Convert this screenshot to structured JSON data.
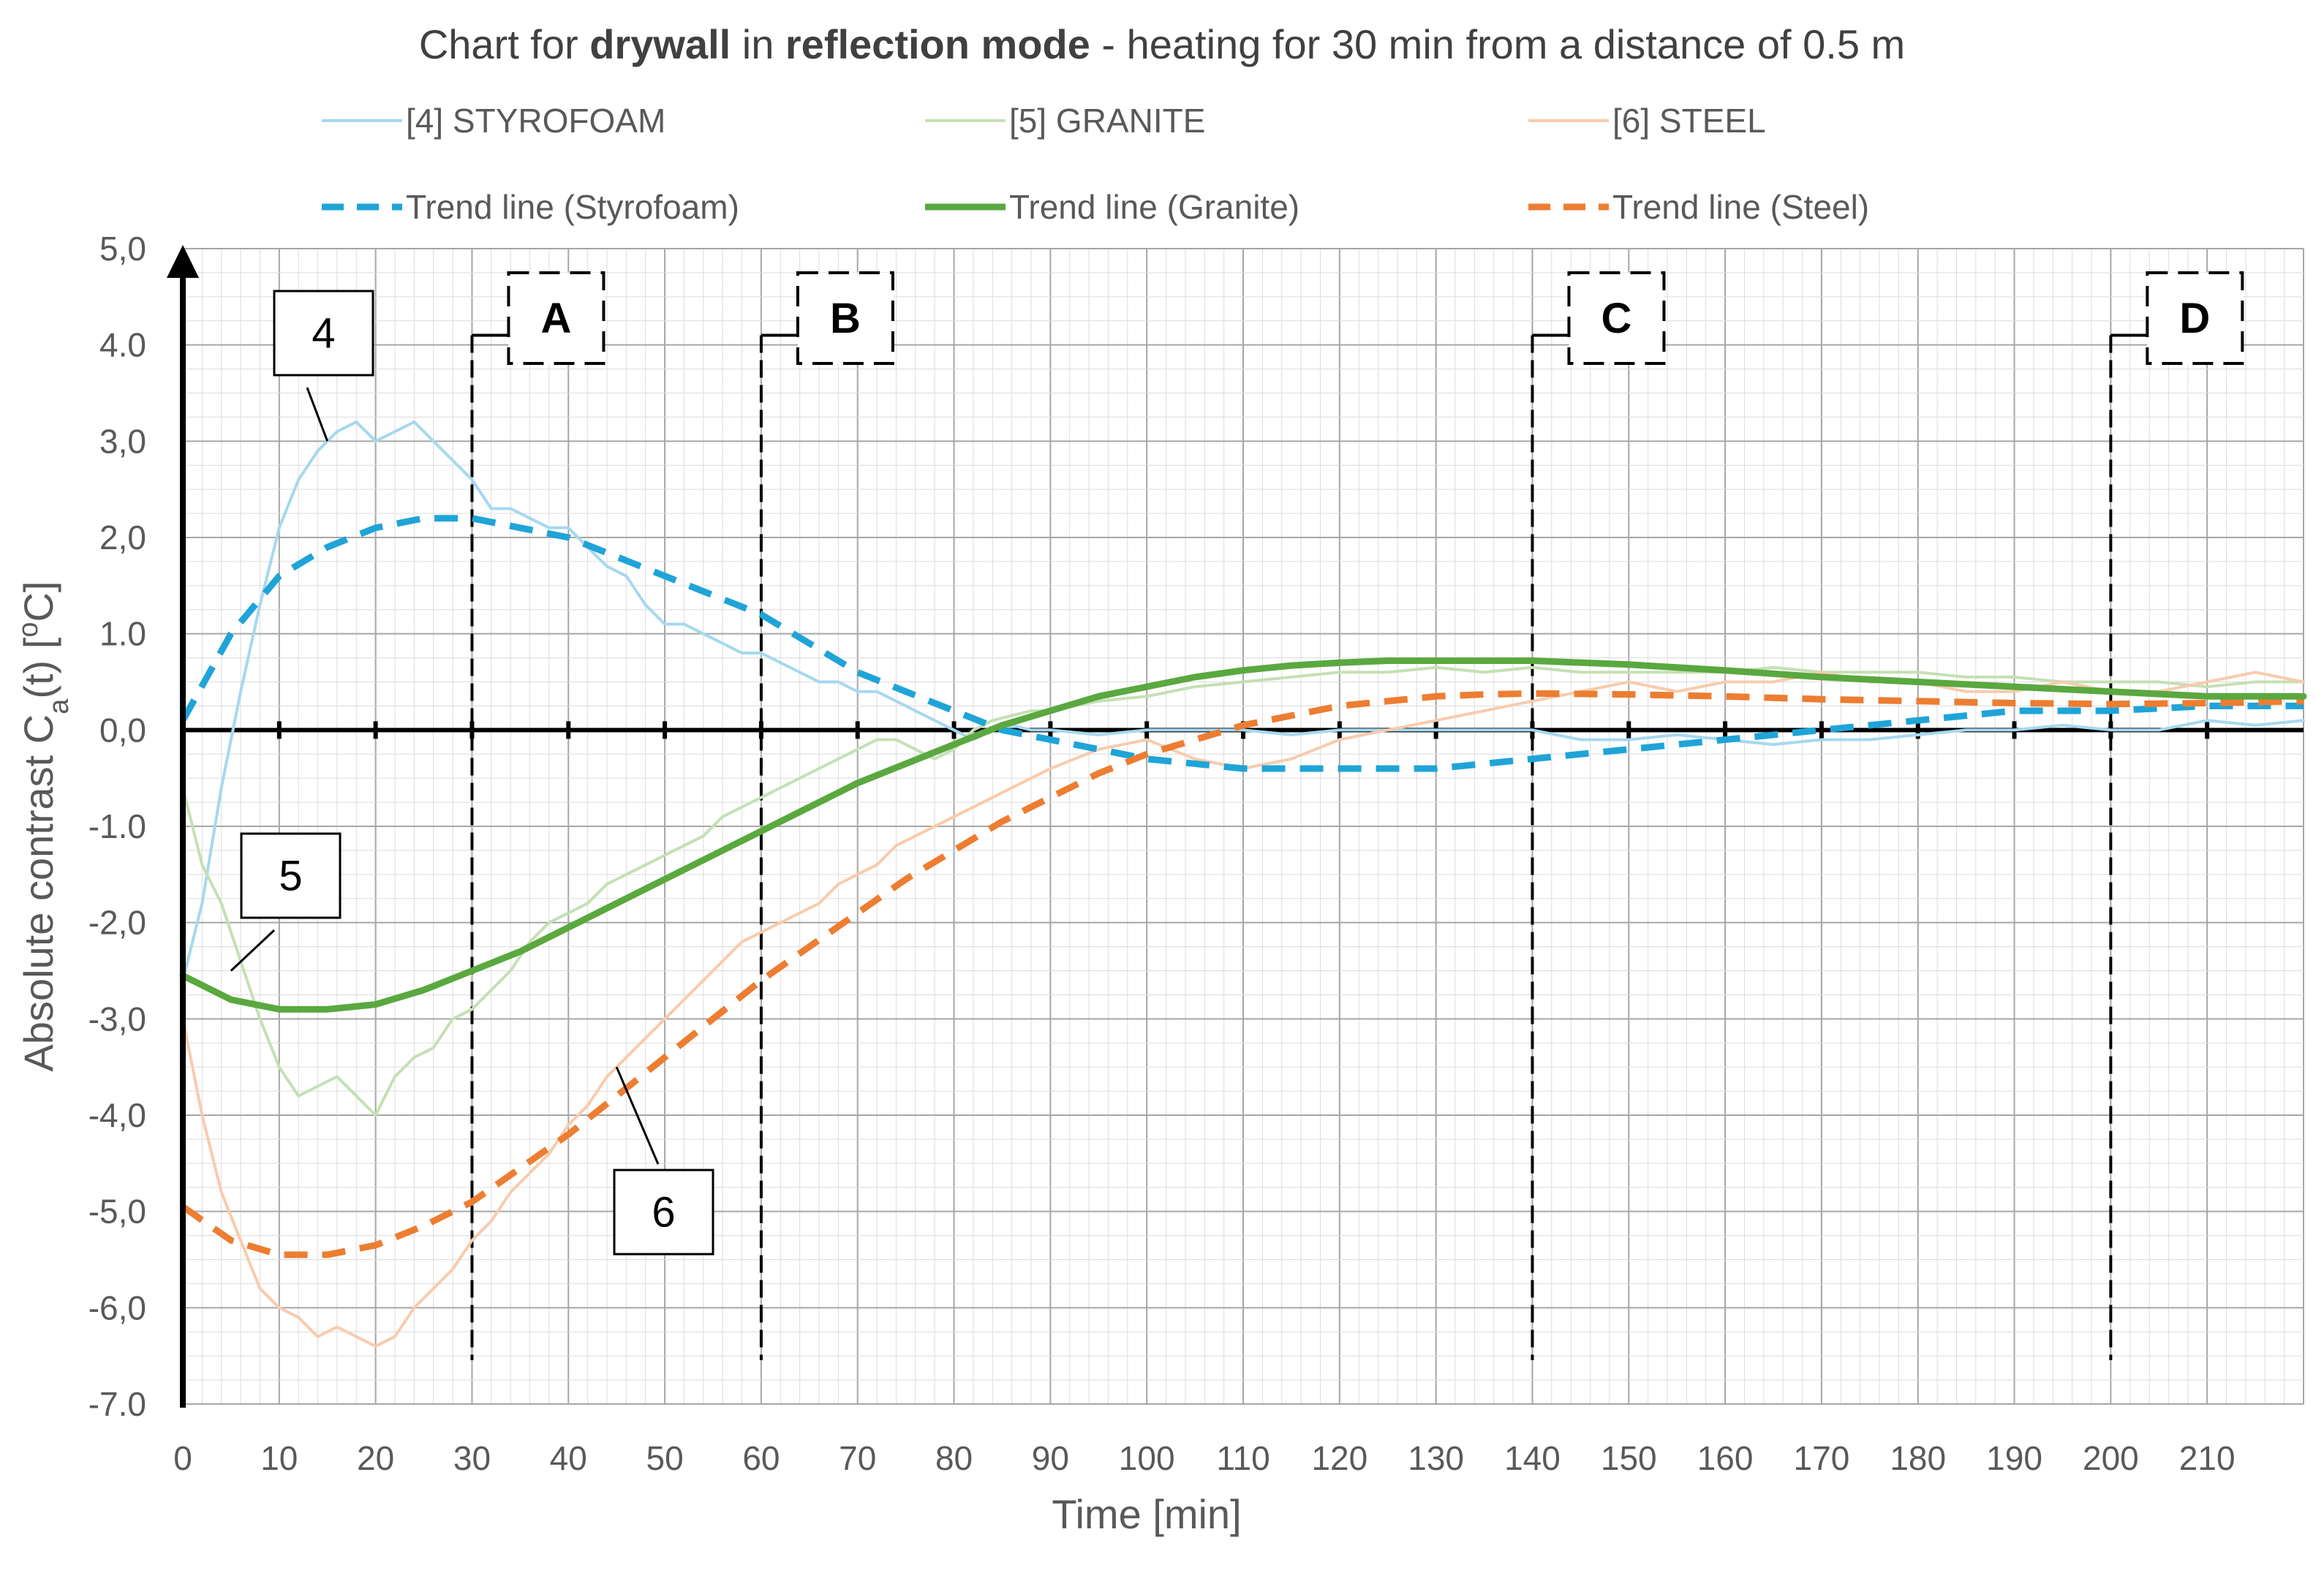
{
  "chart_data": {
    "type": "line",
    "title": {
      "part1": "Chart for ",
      "part2": "drywall",
      "part3": " in ",
      "part4": "reflection mode",
      "part5": " - heating for 30 min from a distance of 0.5 m"
    },
    "xlabel": "Time [min]",
    "ylabel": {
      "main": "Absolute contrast C",
      "sub": "a",
      "tail": "(t)   [",
      "sup": "o",
      "unit": "C]"
    },
    "xlim": [
      0,
      220
    ],
    "ylim": [
      -7,
      5
    ],
    "x_ticks": [
      0,
      10,
      20,
      30,
      40,
      50,
      60,
      70,
      80,
      90,
      100,
      110,
      120,
      130,
      140,
      150,
      160,
      170,
      180,
      190,
      200,
      210
    ],
    "y_tick_labels": [
      "5,0",
      "4.0",
      "3,0",
      "2,0",
      "1.0",
      "0,0",
      "-1.0",
      "-2,0",
      "-3,0",
      "-4,0",
      "-5,0",
      "-6,0",
      "-7.0"
    ],
    "grid": true,
    "legend_position": "top",
    "series": [
      {
        "name": "[4] STYROFOAM",
        "style": "thin-solid",
        "color": "#a6d8ef",
        "x": [
          0,
          2,
          4,
          6,
          8,
          10,
          12,
          14,
          16,
          18,
          20,
          22,
          24,
          26,
          28,
          30,
          32,
          34,
          36,
          38,
          40,
          42,
          44,
          46,
          48,
          50,
          52,
          54,
          56,
          58,
          60,
          62,
          64,
          66,
          68,
          70,
          72,
          74,
          76,
          78,
          80,
          82,
          84,
          86,
          88,
          90,
          95,
          100,
          105,
          110,
          115,
          120,
          125,
          130,
          135,
          140,
          145,
          150,
          155,
          160,
          165,
          170,
          175,
          180,
          185,
          190,
          195,
          200,
          205,
          210,
          215,
          220
        ],
        "y": [
          -2.6,
          -1.8,
          -0.6,
          0.4,
          1.3,
          2.1,
          2.6,
          2.9,
          3.1,
          3.2,
          3.0,
          3.1,
          3.2,
          3.0,
          2.8,
          2.6,
          2.3,
          2.3,
          2.2,
          2.1,
          2.1,
          1.9,
          1.7,
          1.6,
          1.3,
          1.1,
          1.1,
          1.0,
          0.9,
          0.8,
          0.8,
          0.7,
          0.6,
          0.5,
          0.5,
          0.4,
          0.4,
          0.3,
          0.2,
          0.1,
          0.0,
          -0.1,
          0.0,
          0.05,
          0.0,
          0.0,
          -0.05,
          0.0,
          0.0,
          0.0,
          -0.05,
          0.0,
          0.0,
          0.0,
          0.0,
          0.0,
          -0.1,
          -0.1,
          -0.05,
          -0.1,
          -0.15,
          -0.1,
          -0.1,
          -0.05,
          0.0,
          0.0,
          0.05,
          0.0,
          0.0,
          0.1,
          0.05,
          0.1
        ]
      },
      {
        "name": "[5]  GRANITE",
        "style": "thin-solid",
        "color": "#c5e0b4",
        "x": [
          0,
          2,
          4,
          6,
          8,
          10,
          12,
          14,
          16,
          18,
          20,
          22,
          24,
          26,
          28,
          30,
          32,
          34,
          36,
          38,
          40,
          42,
          44,
          46,
          48,
          50,
          52,
          54,
          56,
          58,
          60,
          62,
          64,
          66,
          68,
          70,
          72,
          74,
          76,
          78,
          80,
          82,
          84,
          86,
          88,
          90,
          95,
          100,
          105,
          110,
          115,
          120,
          125,
          130,
          135,
          140,
          145,
          150,
          155,
          160,
          165,
          170,
          175,
          180,
          185,
          190,
          195,
          200,
          205,
          210,
          215,
          220
        ],
        "y": [
          -0.6,
          -1.4,
          -1.8,
          -2.4,
          -3.0,
          -3.5,
          -3.8,
          -3.7,
          -3.6,
          -3.8,
          -4.0,
          -3.6,
          -3.4,
          -3.3,
          -3.0,
          -2.9,
          -2.7,
          -2.5,
          -2.2,
          -2.0,
          -1.9,
          -1.8,
          -1.6,
          -1.5,
          -1.4,
          -1.3,
          -1.2,
          -1.1,
          -0.9,
          -0.8,
          -0.7,
          -0.6,
          -0.5,
          -0.4,
          -0.3,
          -0.2,
          -0.1,
          -0.1,
          -0.2,
          -0.3,
          -0.2,
          0.0,
          0.1,
          0.15,
          0.2,
          0.2,
          0.3,
          0.35,
          0.45,
          0.5,
          0.55,
          0.6,
          0.6,
          0.65,
          0.6,
          0.65,
          0.6,
          0.6,
          0.6,
          0.6,
          0.65,
          0.6,
          0.6,
          0.6,
          0.55,
          0.55,
          0.5,
          0.5,
          0.5,
          0.45,
          0.5,
          0.5
        ]
      },
      {
        "name": "[6] STEEL",
        "style": "thin-solid",
        "color": "#f8cbad",
        "x": [
          0,
          2,
          4,
          6,
          8,
          10,
          12,
          14,
          16,
          18,
          20,
          22,
          24,
          26,
          28,
          30,
          32,
          34,
          36,
          38,
          40,
          42,
          44,
          46,
          48,
          50,
          52,
          54,
          56,
          58,
          60,
          62,
          64,
          66,
          68,
          70,
          72,
          74,
          76,
          78,
          80,
          82,
          84,
          86,
          88,
          90,
          95,
          100,
          105,
          110,
          115,
          120,
          125,
          130,
          135,
          140,
          145,
          150,
          155,
          160,
          165,
          170,
          175,
          180,
          185,
          190,
          195,
          200,
          205,
          210,
          215,
          220
        ],
        "y": [
          -3.0,
          -4.0,
          -4.8,
          -5.3,
          -5.8,
          -6.0,
          -6.1,
          -6.3,
          -6.2,
          -6.3,
          -6.4,
          -6.3,
          -6.0,
          -5.8,
          -5.6,
          -5.3,
          -5.1,
          -4.8,
          -4.6,
          -4.4,
          -4.1,
          -3.9,
          -3.6,
          -3.4,
          -3.2,
          -3.0,
          -2.8,
          -2.6,
          -2.4,
          -2.2,
          -2.1,
          -2.0,
          -1.9,
          -1.8,
          -1.6,
          -1.5,
          -1.4,
          -1.2,
          -1.1,
          -1.0,
          -0.9,
          -0.8,
          -0.7,
          -0.6,
          -0.5,
          -0.4,
          -0.2,
          -0.1,
          -0.3,
          -0.4,
          -0.3,
          -0.1,
          0.0,
          0.1,
          0.2,
          0.3,
          0.4,
          0.5,
          0.4,
          0.5,
          0.5,
          0.6,
          0.5,
          0.5,
          0.4,
          0.4,
          0.5,
          0.4,
          0.4,
          0.5,
          0.6,
          0.5
        ]
      },
      {
        "name": "Trend line (Styrofoam)",
        "style": "dashed",
        "color": "#1fa4d8",
        "x": [
          0,
          5,
          10,
          15,
          20,
          25,
          30,
          35,
          40,
          45,
          50,
          55,
          60,
          65,
          70,
          75,
          80,
          85,
          90,
          95,
          100,
          105,
          110,
          120,
          130,
          140,
          150,
          160,
          170,
          180,
          190,
          200,
          210,
          220
        ],
        "y": [
          0.1,
          1.0,
          1.6,
          1.9,
          2.1,
          2.2,
          2.2,
          2.1,
          2.0,
          1.8,
          1.6,
          1.4,
          1.2,
          0.9,
          0.6,
          0.4,
          0.2,
          0.0,
          -0.1,
          -0.2,
          -0.3,
          -0.35,
          -0.4,
          -0.4,
          -0.4,
          -0.3,
          -0.2,
          -0.1,
          0.0,
          0.1,
          0.2,
          0.2,
          0.25,
          0.25
        ]
      },
      {
        "name": "Trend line (Granite)",
        "style": "solid-thick",
        "color": "#5aa83f",
        "x": [
          0,
          5,
          10,
          15,
          20,
          25,
          30,
          35,
          40,
          45,
          50,
          55,
          60,
          65,
          70,
          75,
          80,
          85,
          90,
          95,
          100,
          105,
          110,
          115,
          120,
          125,
          130,
          135,
          140,
          150,
          160,
          170,
          180,
          190,
          200,
          210,
          220
        ],
        "y": [
          -2.55,
          -2.8,
          -2.9,
          -2.9,
          -2.85,
          -2.7,
          -2.5,
          -2.3,
          -2.05,
          -1.8,
          -1.55,
          -1.3,
          -1.05,
          -0.8,
          -0.55,
          -0.35,
          -0.15,
          0.05,
          0.2,
          0.35,
          0.45,
          0.55,
          0.62,
          0.67,
          0.7,
          0.72,
          0.72,
          0.72,
          0.72,
          0.68,
          0.62,
          0.55,
          0.5,
          0.45,
          0.4,
          0.35,
          0.35
        ]
      },
      {
        "name": "Trend line (Steel)",
        "style": "dashed",
        "color": "#ed7d31",
        "x": [
          0,
          5,
          10,
          15,
          20,
          25,
          30,
          35,
          40,
          45,
          50,
          55,
          60,
          65,
          70,
          75,
          80,
          85,
          90,
          95,
          100,
          105,
          110,
          115,
          120,
          125,
          130,
          135,
          140,
          150,
          160,
          170,
          180,
          190,
          200,
          210,
          220
        ],
        "y": [
          -4.95,
          -5.3,
          -5.45,
          -5.45,
          -5.35,
          -5.15,
          -4.9,
          -4.55,
          -4.2,
          -3.8,
          -3.4,
          -3.0,
          -2.6,
          -2.25,
          -1.9,
          -1.55,
          -1.25,
          -0.95,
          -0.7,
          -0.45,
          -0.25,
          -0.1,
          0.05,
          0.15,
          0.25,
          0.3,
          0.35,
          0.37,
          0.38,
          0.37,
          0.35,
          0.32,
          0.3,
          0.28,
          0.27,
          0.28,
          0.3
        ]
      }
    ],
    "phase_markers": [
      {
        "label": "A",
        "x": 30
      },
      {
        "label": "B",
        "x": 60
      },
      {
        "label": "C",
        "x": 140
      },
      {
        "label": "D",
        "x": 200
      }
    ],
    "callouts": [
      {
        "label": "4",
        "points_to": [
          15,
          3.0
        ]
      },
      {
        "label": "5",
        "points_to": [
          5,
          -2.5
        ]
      },
      {
        "label": "6",
        "points_to": [
          45,
          -3.5
        ]
      }
    ]
  },
  "colors": {
    "axis": "#000000",
    "grid_major": "#a6a6a6",
    "grid_minor": "#dcdcdc",
    "marker_line": "#000000"
  }
}
